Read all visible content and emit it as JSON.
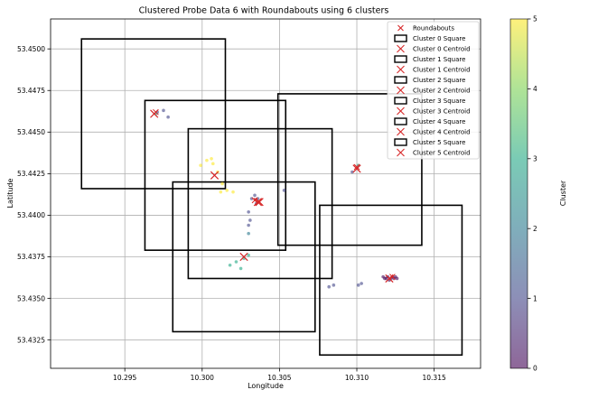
{
  "chart_data": {
    "type": "scatter",
    "title": "Clustered Probe Data 6 with Roundabouts using 6 clusters",
    "xlabel": "Longitude",
    "ylabel": "Latitude",
    "xlim": [
      10.2902,
      10.318
    ],
    "ylim": [
      53.4308,
      53.4518
    ],
    "xticks": [
      "10.295",
      "10.300",
      "10.305",
      "10.310",
      "10.315"
    ],
    "yticks": [
      "53.4325",
      "53.4350",
      "53.4375",
      "53.4400",
      "53.4425",
      "53.4450",
      "53.4475",
      "53.4500"
    ],
    "grid": true,
    "legend_placement": "top-right",
    "colorbar": {
      "label": "Cluster",
      "min": 0,
      "max": 5,
      "ticks": [
        "0",
        "1",
        "2",
        "3",
        "4",
        "5"
      ],
      "colormap": "viridis"
    },
    "legend": [
      {
        "label": "Roundabouts",
        "marker": "x-small"
      },
      {
        "label": "Cluster 0 Square",
        "marker": "square"
      },
      {
        "label": "Cluster 0 Centroid",
        "marker": "x-large"
      },
      {
        "label": "Cluster 1 Square",
        "marker": "square"
      },
      {
        "label": "Cluster 1 Centroid",
        "marker": "x-large"
      },
      {
        "label": "Cluster 2 Square",
        "marker": "square"
      },
      {
        "label": "Cluster 2 Centroid",
        "marker": "x-large"
      },
      {
        "label": "Cluster 3 Square",
        "marker": "square"
      },
      {
        "label": "Cluster 3 Centroid",
        "marker": "x-large"
      },
      {
        "label": "Cluster 4 Square",
        "marker": "square"
      },
      {
        "label": "Cluster 4 Centroid",
        "marker": "x-large"
      },
      {
        "label": "Cluster 5 Square",
        "marker": "square"
      },
      {
        "label": "Cluster 5 Centroid",
        "marker": "x-large"
      }
    ],
    "points": [
      {
        "x": 10.3125,
        "y": 53.4363,
        "cluster": 0
      },
      {
        "x": 10.3122,
        "y": 53.4362,
        "cluster": 0
      },
      {
        "x": 10.3124,
        "y": 53.4362,
        "cluster": 0
      },
      {
        "x": 10.3121,
        "y": 53.4361,
        "cluster": 0
      },
      {
        "x": 10.3119,
        "y": 53.4362,
        "cluster": 0
      },
      {
        "x": 10.3123,
        "y": 53.4363,
        "cluster": 0
      },
      {
        "x": 10.3126,
        "y": 53.4362,
        "cluster": 0
      },
      {
        "x": 10.3117,
        "y": 53.4363,
        "cluster": 0
      },
      {
        "x": 10.312,
        "y": 53.4363,
        "cluster": 0
      },
      {
        "x": 10.3118,
        "y": 53.4362,
        "cluster": 0
      },
      {
        "x": 10.3103,
        "y": 53.4359,
        "cluster": 1
      },
      {
        "x": 10.3101,
        "y": 53.4358,
        "cluster": 1
      },
      {
        "x": 10.3085,
        "y": 53.4358,
        "cluster": 1
      },
      {
        "x": 10.3082,
        "y": 53.4357,
        "cluster": 1
      },
      {
        "x": 10.3034,
        "y": 53.4412,
        "cluster": 1
      },
      {
        "x": 10.3032,
        "y": 53.441,
        "cluster": 1
      },
      {
        "x": 10.3035,
        "y": 53.4407,
        "cluster": 1
      },
      {
        "x": 10.303,
        "y": 53.4402,
        "cluster": 1
      },
      {
        "x": 10.3031,
        "y": 53.4397,
        "cluster": 1
      },
      {
        "x": 10.303,
        "y": 53.4394,
        "cluster": 1
      },
      {
        "x": 10.3036,
        "y": 53.441,
        "cluster": 1
      },
      {
        "x": 10.3053,
        "y": 53.4415,
        "cluster": 1
      },
      {
        "x": 10.3097,
        "y": 53.4426,
        "cluster": 1
      },
      {
        "x": 10.2975,
        "y": 53.4463,
        "cluster": 1
      },
      {
        "x": 10.2971,
        "y": 53.4462,
        "cluster": 1
      },
      {
        "x": 10.2978,
        "y": 53.4459,
        "cluster": 1
      },
      {
        "x": 10.303,
        "y": 53.4389,
        "cluster": 2
      },
      {
        "x": 10.303,
        "y": 53.4376,
        "cluster": 3
      },
      {
        "x": 10.3027,
        "y": 53.4374,
        "cluster": 3
      },
      {
        "x": 10.3022,
        "y": 53.4372,
        "cluster": 3
      },
      {
        "x": 10.3018,
        "y": 53.437,
        "cluster": 3
      },
      {
        "x": 10.3025,
        "y": 53.4368,
        "cluster": 3
      },
      {
        "x": 10.297,
        "y": 53.4461,
        "cluster": 3
      },
      {
        "x": 10.3101,
        "y": 53.443,
        "cluster": 3
      },
      {
        "x": 10.2999,
        "y": 53.443,
        "cluster": 5
      },
      {
        "x": 10.3003,
        "y": 53.4433,
        "cluster": 5
      },
      {
        "x": 10.3006,
        "y": 53.4434,
        "cluster": 5
      },
      {
        "x": 10.3007,
        "y": 53.4431,
        "cluster": 5
      },
      {
        "x": 10.301,
        "y": 53.4426,
        "cluster": 5
      },
      {
        "x": 10.3013,
        "y": 53.4419,
        "cluster": 5
      },
      {
        "x": 10.3016,
        "y": 53.4415,
        "cluster": 5
      },
      {
        "x": 10.302,
        "y": 53.4414,
        "cluster": 5
      },
      {
        "x": 10.3012,
        "y": 53.4414,
        "cluster": 5
      }
    ],
    "roundabouts": [
      {
        "x": 10.297,
        "y": 53.4462
      },
      {
        "x": 10.3034,
        "y": 53.4409
      },
      {
        "x": 10.31,
        "y": 53.4429
      },
      {
        "x": 10.3123,
        "y": 53.4363
      }
    ],
    "squares": [
      {
        "cluster": 0,
        "x": [
          10.3076,
          10.3168
        ],
        "y": [
          53.4316,
          53.4406
        ]
      },
      {
        "cluster": 1,
        "x": [
          10.3049,
          10.3142
        ],
        "y": [
          53.4382,
          53.4473
        ]
      },
      {
        "cluster": 2,
        "x": [
          10.2981,
          10.3073
        ],
        "y": [
          53.433,
          53.442
        ]
      },
      {
        "cluster": 3,
        "x": [
          10.2991,
          10.3084
        ],
        "y": [
          53.4362,
          53.4452
        ]
      },
      {
        "cluster": 4,
        "x": [
          10.2922,
          10.3015
        ],
        "y": [
          53.4416,
          53.4506
        ]
      },
      {
        "cluster": 5,
        "x": [
          10.2963,
          10.3054
        ],
        "y": [
          53.4379,
          53.4469
        ]
      }
    ],
    "centroids": [
      {
        "cluster": 0,
        "x": 10.3121,
        "y": 53.4362
      },
      {
        "cluster": 1,
        "x": 10.3037,
        "y": 53.4408
      },
      {
        "cluster": 2,
        "x": 10.3027,
        "y": 53.4375
      },
      {
        "cluster": 3,
        "x": 10.3036,
        "y": 53.4408
      },
      {
        "cluster": 4,
        "x": 10.2969,
        "y": 53.4461
      },
      {
        "cluster": 5,
        "x": 10.3008,
        "y": 53.4424
      }
    ],
    "extra_roundabout": {
      "x": 10.31,
      "y": 53.4428
    }
  }
}
